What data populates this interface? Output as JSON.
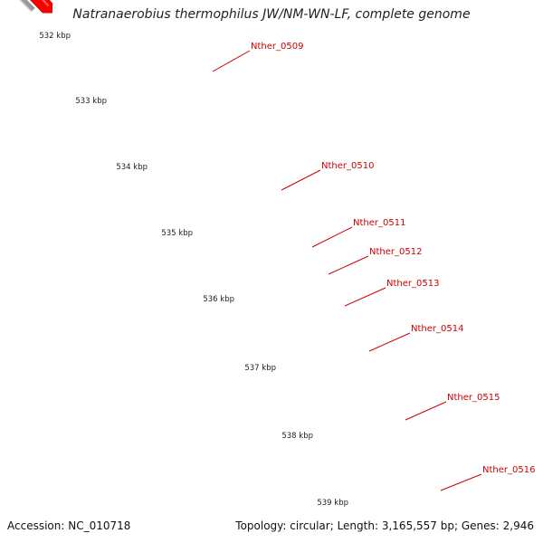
{
  "title": "Natranaerobius thermophilus JW/NM-WN-LF, complete genome",
  "accession_label": "Accession:",
  "accession": "NC_010718",
  "topology_label": "Topology:",
  "topology": "circular",
  "length_label": "Length:",
  "length": "3,165,557 bp",
  "genes_label": "Genes:",
  "genes": "2,946",
  "colors": {
    "backbone": "#9a9a9a",
    "cds_red": "#ff0000",
    "tick_green": "#2e8b2e",
    "label_red": "#cc0000"
  },
  "ticks": [
    {
      "label": "532 kbp"
    },
    {
      "label": "533 kbp"
    },
    {
      "label": "534 kbp"
    },
    {
      "label": "535 kbp"
    },
    {
      "label": "536 kbp"
    },
    {
      "label": "537 kbp"
    },
    {
      "label": "538 kbp"
    },
    {
      "label": "539 kbp"
    }
  ],
  "genes_list": [
    {
      "name": "Nther_0509",
      "color": "#4b3c8c"
    },
    {
      "name": "Nther_0510",
      "color": "#0000ff"
    },
    {
      "name": "Nther_0511",
      "color": "#6e6e6e"
    },
    {
      "name": "Nther_0512",
      "color": "#eeeaa0"
    },
    {
      "name": "Nther_0513",
      "color": "#eeeaa0"
    },
    {
      "name": "Nther_0514",
      "color": "#ff1493"
    },
    {
      "name": "Nther_0515",
      "color": "#eeeaa0"
    },
    {
      "name": "Nther_0516",
      "color": "#6b8e23"
    }
  ]
}
